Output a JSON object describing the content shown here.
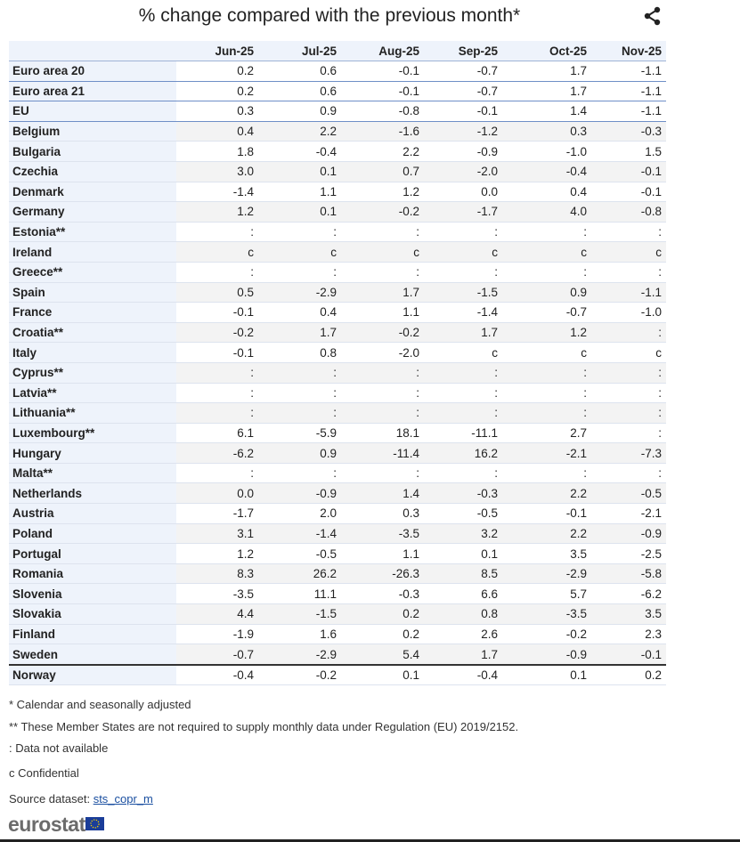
{
  "title": "% change compared with the previous month*",
  "table": {
    "header": [
      "Jun-25",
      "Jul-25",
      "Aug-25",
      "Sep-25",
      "Oct-25",
      "Nov-25"
    ],
    "rows": [
      [
        "Euro area 20",
        "0.2",
        "0.6",
        "-0.1",
        "-0.7",
        "1.7",
        "-1.1"
      ],
      [
        "Euro area 21",
        "0.2",
        "0.6",
        "-0.1",
        "-0.7",
        "1.7",
        "-1.1"
      ],
      [
        "EU",
        "0.3",
        "0.9",
        "-0.8",
        "-0.1",
        "1.4",
        "-1.1"
      ],
      [
        "Belgium",
        "0.4",
        "2.2",
        "-1.6",
        "-1.2",
        "0.3",
        "-0.3"
      ],
      [
        "Bulgaria",
        "1.8",
        "-0.4",
        "2.2",
        "-0.9",
        "-1.0",
        "1.5"
      ],
      [
        "Czechia",
        "3.0",
        "0.1",
        "0.7",
        "-2.0",
        "-0.4",
        "-0.1"
      ],
      [
        "Denmark",
        "-1.4",
        "1.1",
        "1.2",
        "0.0",
        "0.4",
        "-0.1"
      ],
      [
        "Germany",
        "1.2",
        "0.1",
        "-0.2",
        "-1.7",
        "4.0",
        "-0.8"
      ],
      [
        "Estonia**",
        ":",
        ":",
        ":",
        ":",
        ":",
        ":"
      ],
      [
        "Ireland",
        "c",
        "c",
        "c",
        "c",
        "c",
        "c"
      ],
      [
        "Greece**",
        ":",
        ":",
        ":",
        ":",
        ":",
        ":"
      ],
      [
        "Spain",
        "0.5",
        "-2.9",
        "1.7",
        "-1.5",
        "0.9",
        "-1.1"
      ],
      [
        "France",
        "-0.1",
        "0.4",
        "1.1",
        "-1.4",
        "-0.7",
        "-1.0"
      ],
      [
        "Croatia**",
        "-0.2",
        "1.7",
        "-0.2",
        "1.7",
        "1.2",
        ":"
      ],
      [
        "Italy",
        "-0.1",
        "0.8",
        "-2.0",
        "c",
        "c",
        "c"
      ],
      [
        "Cyprus**",
        ":",
        ":",
        ":",
        ":",
        ":",
        ":"
      ],
      [
        "Latvia**",
        ":",
        ":",
        ":",
        ":",
        ":",
        ":"
      ],
      [
        "Lithuania**",
        ":",
        ":",
        ":",
        ":",
        ":",
        ":"
      ],
      [
        "Luxembourg**",
        "6.1",
        "-5.9",
        "18.1",
        "-11.1",
        "2.7",
        ":"
      ],
      [
        "Hungary",
        "-6.2",
        "0.9",
        "-11.4",
        "16.2",
        "-2.1",
        "-7.3"
      ],
      [
        "Malta**",
        ":",
        ":",
        ":",
        ":",
        ":",
        ":"
      ],
      [
        "Netherlands",
        "0.0",
        "-0.9",
        "1.4",
        "-0.3",
        "2.2",
        "-0.5"
      ],
      [
        "Austria",
        "-1.7",
        "2.0",
        "0.3",
        "-0.5",
        "-0.1",
        "-2.1"
      ],
      [
        "Poland",
        "3.1",
        "-1.4",
        "-3.5",
        "3.2",
        "2.2",
        "-0.9"
      ],
      [
        "Portugal",
        "1.2",
        "-0.5",
        "1.1",
        "0.1",
        "3.5",
        "-2.5"
      ],
      [
        "Romania",
        "8.3",
        "26.2",
        "-26.3",
        "8.5",
        "-2.9",
        "-5.8"
      ],
      [
        "Slovenia",
        "-3.5",
        "11.1",
        "-0.3",
        "6.6",
        "5.7",
        "-6.2"
      ],
      [
        "Slovakia",
        "4.4",
        "-1.5",
        "0.2",
        "0.8",
        "-3.5",
        "3.5"
      ],
      [
        "Finland",
        "-1.9",
        "1.6",
        "0.2",
        "2.6",
        "-0.2",
        "2.3"
      ],
      [
        "Sweden",
        "-0.7",
        "-2.9",
        "5.4",
        "1.7",
        "-0.9",
        "-0.1"
      ],
      [
        "Norway",
        "-0.4",
        "-0.2",
        "0.1",
        "-0.4",
        "0.1",
        "0.2"
      ]
    ]
  },
  "notes": [
    "*  Calendar and seasonally adjusted",
    "** These Member States are not required to supply monthly data under Regulation (EU) 2019/2152.",
    ":   Data not available",
    "c Confidential"
  ],
  "source": {
    "label": "Source dataset:",
    "link": "sts_copr_m"
  },
  "logo": "eurostat"
}
